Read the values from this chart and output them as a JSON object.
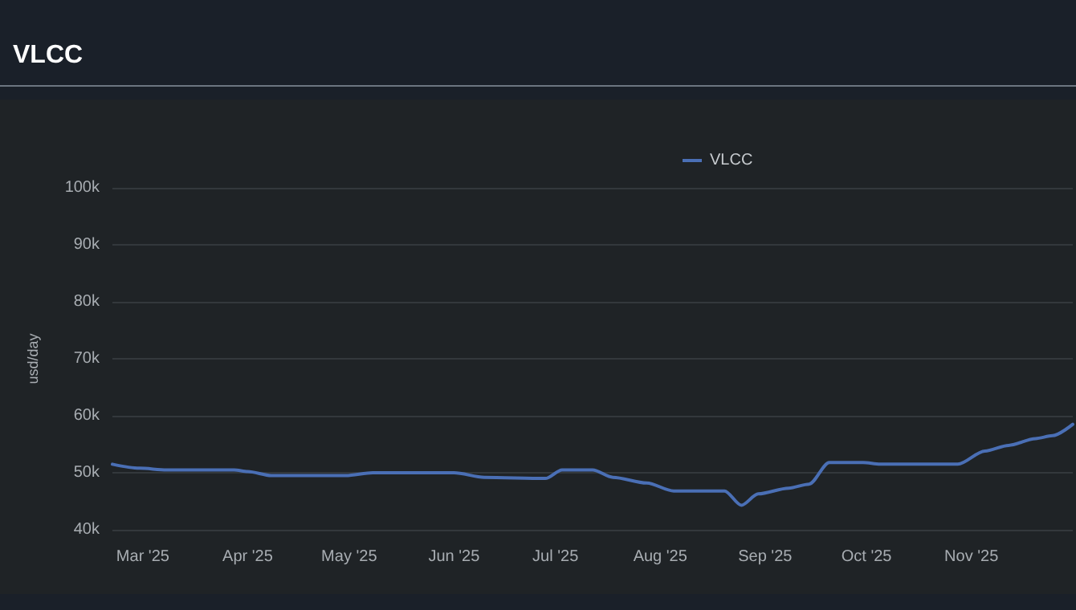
{
  "chart_data": {
    "type": "line",
    "title": "VLCC",
    "ylabel": "usd/day",
    "legend": "top",
    "grid": "y",
    "marker": "none",
    "line_style": "solid",
    "xlim": [
      "2025-02-20",
      "2025-12-01"
    ],
    "xticks": [
      {
        "value": "2025-03-01",
        "label": "Mar '25"
      },
      {
        "value": "2025-04-01",
        "label": "Apr '25"
      },
      {
        "value": "2025-05-01",
        "label": "May '25"
      },
      {
        "value": "2025-06-01",
        "label": "Jun '25"
      },
      {
        "value": "2025-07-01",
        "label": "Jul '25"
      },
      {
        "value": "2025-08-01",
        "label": "Aug '25"
      },
      {
        "value": "2025-09-01",
        "label": "Sep '25"
      },
      {
        "value": "2025-10-01",
        "label": "Oct '25"
      },
      {
        "value": "2025-11-01",
        "label": "Nov '25"
      }
    ],
    "ylim": [
      40000,
      100000
    ],
    "yticks": [
      {
        "value": 40000,
        "label": "40k"
      },
      {
        "value": 50000,
        "label": "50k"
      },
      {
        "value": 60000,
        "label": "60k"
      },
      {
        "value": 70000,
        "label": "70k"
      },
      {
        "value": 80000,
        "label": "80k"
      },
      {
        "value": 90000,
        "label": "90k"
      },
      {
        "value": 100000,
        "label": "100k"
      }
    ],
    "x": [
      "2025-02-20",
      "2025-02-28",
      "2025-03-08",
      "2025-03-28",
      "2025-04-01",
      "2025-04-08",
      "2025-04-30",
      "2025-05-08",
      "2025-06-01",
      "2025-06-10",
      "2025-06-28",
      "2025-07-03",
      "2025-07-12",
      "2025-07-18",
      "2025-07-28",
      "2025-08-05",
      "2025-08-20",
      "2025-08-25",
      "2025-08-30",
      "2025-09-08",
      "2025-09-14",
      "2025-09-20",
      "2025-09-30",
      "2025-10-05",
      "2025-10-28",
      "2025-11-05",
      "2025-11-12",
      "2025-11-20",
      "2025-11-25",
      "2025-12-01"
    ],
    "series": [
      {
        "name": "VLCC",
        "color": "#4a6fb5",
        "values": [
          51500,
          50800,
          50500,
          50500,
          50200,
          49500,
          49500,
          50000,
          50000,
          49200,
          49000,
          50500,
          50500,
          49200,
          48200,
          46800,
          46800,
          44300,
          46300,
          47300,
          48000,
          51800,
          51800,
          51500,
          51500,
          53800,
          54800,
          56000,
          56500,
          58500
        ]
      }
    ]
  }
}
